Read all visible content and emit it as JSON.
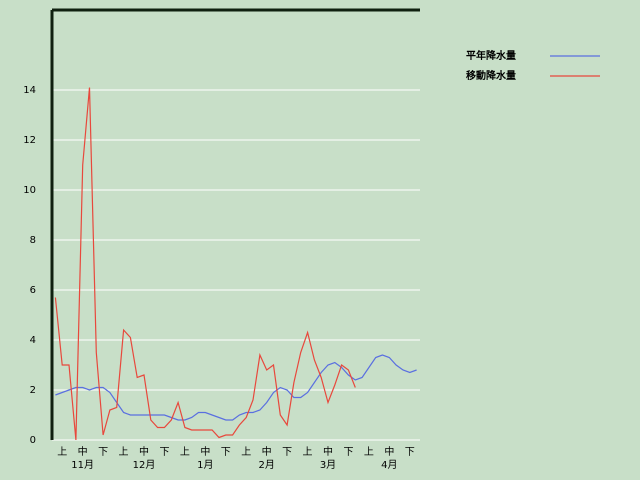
{
  "chart_data": {
    "type": "line",
    "categories": [
      null,
      "上",
      null,
      null,
      "中",
      null,
      null,
      "下",
      null,
      null,
      "上",
      null,
      null,
      "中",
      null,
      null,
      "下",
      null,
      null,
      "上",
      null,
      null,
      "中",
      null,
      null,
      "下",
      null,
      null,
      "上",
      null,
      null,
      "中",
      null,
      null,
      "下",
      null,
      null,
      "上",
      null,
      null,
      "中",
      null,
      null,
      "下",
      null,
      null,
      "上",
      null,
      null,
      "中",
      null,
      null,
      "下",
      null
    ],
    "months": [
      "11月",
      "12月",
      "1月",
      "2月",
      "3月",
      "4月"
    ],
    "series": [
      {
        "name": "平年降水量",
        "color": "#5a6fe0",
        "values": [
          1.8,
          1.9,
          2.0,
          2.1,
          2.1,
          2.0,
          2.1,
          2.1,
          1.9,
          1.5,
          1.1,
          1.0,
          1.0,
          1.0,
          1.0,
          1.0,
          1.0,
          0.9,
          0.8,
          0.8,
          0.9,
          1.1,
          1.1,
          1.0,
          0.9,
          0.8,
          0.8,
          1.0,
          1.1,
          1.1,
          1.2,
          1.5,
          1.9,
          2.1,
          2.0,
          1.7,
          1.7,
          1.9,
          2.3,
          2.7,
          3.0,
          3.1,
          2.9,
          2.6,
          2.4,
          2.5,
          2.9,
          3.3,
          3.4,
          3.3,
          3.0,
          2.8,
          2.7,
          2.8
        ]
      },
      {
        "name": "移動降水量",
        "color": "#e8483c",
        "values": [
          5.7,
          3.0,
          3.0,
          0,
          11,
          14.1,
          3.5,
          0.2,
          1.2,
          1.3,
          4.4,
          4.1,
          2.5,
          2.6,
          0.8,
          0.5,
          0.5,
          0.8,
          1.5,
          0.5,
          0.4,
          0.4,
          0.4,
          0.4,
          0.1,
          0.2,
          0.2,
          0.6,
          0.9,
          1.6,
          3.4,
          2.8,
          3.0,
          1.0,
          0.6,
          2.3,
          3.5,
          4.3,
          3.2,
          2.5,
          1.5,
          2.2,
          3.0,
          2.8,
          2.1,
          null,
          null,
          null,
          null,
          null,
          null,
          null,
          null,
          null
        ]
      }
    ],
    "ylim": [
      0,
      17.2
    ],
    "yticks": [
      0,
      2,
      4,
      6,
      8,
      10,
      12,
      14
    ],
    "grid": true
  }
}
